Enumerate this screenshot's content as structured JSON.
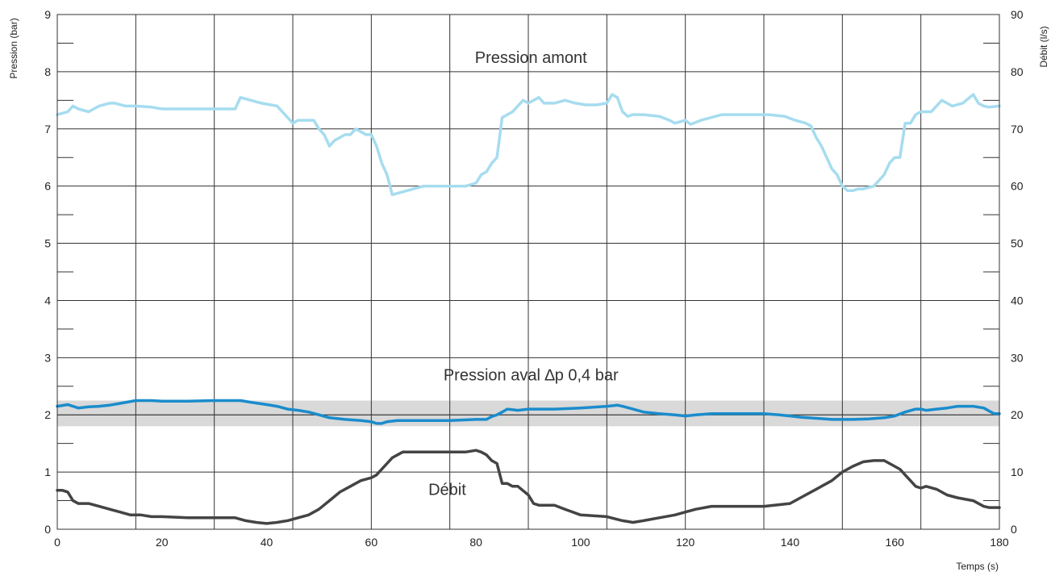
{
  "chart_data": {
    "type": "line",
    "x_axis": {
      "label": "Temps (s)",
      "range": [
        0,
        180
      ],
      "ticks": [
        0,
        20,
        40,
        60,
        80,
        100,
        120,
        140,
        160,
        180
      ],
      "grid_step": 15
    },
    "y_axis_left": {
      "label": "Pression (bar)",
      "range": [
        0,
        9
      ],
      "ticks": [
        0,
        1,
        2,
        3,
        4,
        5,
        6,
        7,
        8,
        9
      ]
    },
    "y_axis_right": {
      "label": "Débit (l/s)",
      "range": [
        0,
        90
      ],
      "ticks": [
        0,
        10,
        20,
        30,
        40,
        50,
        60,
        70,
        80,
        90
      ]
    },
    "grid": true,
    "band": {
      "center": 2.0,
      "lower": 1.8,
      "upper": 2.25,
      "color": "#d9d9d9"
    },
    "annotations": [
      {
        "text": "Pression amont",
        "x": 90.5,
        "y": 8.25
      },
      {
        "text": "Pression aval ∆p 0,4 bar",
        "x": 90.5,
        "y": 2.7
      },
      {
        "text": "Débit",
        "x": 74.5,
        "y": 0.7
      }
    ],
    "series": [
      {
        "axis": "left",
        "color": "#a6dcef",
        "x": [
          0,
          2,
          3,
          4,
          6,
          8,
          10,
          11,
          13,
          15,
          18,
          20,
          25,
          30,
          34,
          35,
          37,
          39,
          42,
          44,
          45,
          46,
          49,
          50,
          51,
          52,
          53,
          55,
          56,
          57,
          58,
          59,
          60,
          61,
          62,
          63,
          64,
          66,
          68,
          70,
          72,
          74,
          76,
          78,
          80,
          81,
          82,
          83,
          84,
          85,
          86,
          87,
          88,
          89,
          90,
          91,
          92,
          93,
          95,
          97,
          99,
          101,
          103,
          105,
          106,
          107,
          108,
          109,
          110,
          112,
          115,
          117,
          118,
          120,
          121,
          123,
          125,
          127,
          130,
          133,
          136,
          139,
          141,
          143,
          144,
          145,
          146,
          147,
          148,
          149,
          150,
          151,
          152,
          153,
          154,
          156,
          158,
          159,
          160,
          161,
          162,
          163,
          164,
          165,
          166,
          167,
          169,
          170,
          171,
          173,
          175,
          176,
          177,
          178,
          180
        ],
        "y": [
          7.25,
          7.3,
          7.4,
          7.35,
          7.3,
          7.4,
          7.45,
          7.45,
          7.4,
          7.4,
          7.38,
          7.35,
          7.35,
          7.35,
          7.35,
          7.55,
          7.5,
          7.45,
          7.4,
          7.2,
          7.1,
          7.15,
          7.15,
          7.0,
          6.9,
          6.7,
          6.8,
          6.9,
          6.9,
          7.0,
          6.95,
          6.9,
          6.9,
          6.7,
          6.4,
          6.2,
          5.85,
          5.9,
          5.95,
          6.0,
          6.0,
          6.0,
          6.0,
          6.0,
          6.05,
          6.2,
          6.25,
          6.4,
          6.5,
          7.2,
          7.25,
          7.3,
          7.4,
          7.5,
          7.45,
          7.5,
          7.55,
          7.45,
          7.45,
          7.5,
          7.45,
          7.42,
          7.42,
          7.45,
          7.6,
          7.55,
          7.3,
          7.22,
          7.25,
          7.25,
          7.22,
          7.15,
          7.1,
          7.15,
          7.08,
          7.15,
          7.2,
          7.25,
          7.25,
          7.25,
          7.25,
          7.22,
          7.15,
          7.1,
          7.05,
          6.85,
          6.7,
          6.5,
          6.3,
          6.2,
          6.0,
          5.92,
          5.92,
          5.95,
          5.95,
          6.0,
          6.2,
          6.4,
          6.5,
          6.5,
          7.1,
          7.1,
          7.25,
          7.3,
          7.3,
          7.3,
          7.5,
          7.45,
          7.4,
          7.45,
          7.6,
          7.45,
          7.4,
          7.38,
          7.4
        ]
      },
      {
        "axis": "left",
        "color": "#1a8ccc",
        "x": [
          0,
          2,
          4,
          6,
          8,
          10,
          12,
          15,
          18,
          20,
          25,
          30,
          35,
          37,
          40,
          42,
          44,
          46,
          48,
          50,
          52,
          55,
          58,
          60,
          61,
          62,
          63,
          65,
          70,
          75,
          80,
          82,
          83,
          84,
          85,
          86,
          88,
          90,
          92,
          95,
          100,
          105,
          107,
          108,
          110,
          112,
          115,
          118,
          120,
          122,
          125,
          130,
          135,
          138,
          140,
          142,
          145,
          148,
          150,
          152,
          155,
          158,
          160,
          162,
          164,
          165,
          166,
          168,
          170,
          172,
          175,
          177,
          178,
          179,
          180
        ],
        "y": [
          2.15,
          2.18,
          2.12,
          2.14,
          2.15,
          2.17,
          2.2,
          2.25,
          2.25,
          2.24,
          2.24,
          2.25,
          2.25,
          2.22,
          2.18,
          2.15,
          2.1,
          2.08,
          2.05,
          2.0,
          1.95,
          1.92,
          1.9,
          1.88,
          1.85,
          1.85,
          1.88,
          1.9,
          1.9,
          1.9,
          1.92,
          1.92,
          1.97,
          2.0,
          2.05,
          2.1,
          2.08,
          2.1,
          2.1,
          2.1,
          2.12,
          2.15,
          2.17,
          2.15,
          2.1,
          2.05,
          2.02,
          2.0,
          1.98,
          2.0,
          2.02,
          2.02,
          2.02,
          2.0,
          1.98,
          1.96,
          1.94,
          1.92,
          1.92,
          1.92,
          1.93,
          1.95,
          1.98,
          2.05,
          2.1,
          2.1,
          2.08,
          2.1,
          2.12,
          2.15,
          2.15,
          2.12,
          2.07,
          2.02,
          2.02
        ]
      },
      {
        "axis": "left",
        "color": "#444444",
        "x": [
          0,
          1,
          2,
          3,
          4,
          6,
          8,
          10,
          12,
          14,
          16,
          18,
          20,
          25,
          30,
          34,
          36,
          38,
          40,
          42,
          44,
          46,
          48,
          50,
          52,
          54,
          56,
          58,
          60,
          61,
          62,
          63,
          64,
          65,
          66,
          67,
          68,
          70,
          72,
          75,
          78,
          80,
          81,
          82,
          83,
          84,
          85,
          86,
          87,
          88,
          90,
          91,
          92,
          95,
          97,
          100,
          105,
          108,
          110,
          112,
          115,
          118,
          120,
          122,
          125,
          130,
          135,
          140,
          142,
          145,
          148,
          150,
          152,
          154,
          156,
          158,
          160,
          161,
          162,
          163,
          164,
          165,
          166,
          168,
          170,
          172,
          175,
          177,
          178,
          180
        ],
        "y": [
          0.68,
          0.68,
          0.65,
          0.5,
          0.45,
          0.45,
          0.4,
          0.35,
          0.3,
          0.25,
          0.25,
          0.22,
          0.22,
          0.2,
          0.2,
          0.2,
          0.15,
          0.12,
          0.1,
          0.12,
          0.15,
          0.2,
          0.25,
          0.35,
          0.5,
          0.65,
          0.75,
          0.85,
          0.9,
          0.95,
          1.05,
          1.15,
          1.25,
          1.3,
          1.35,
          1.35,
          1.35,
          1.35,
          1.35,
          1.35,
          1.35,
          1.38,
          1.35,
          1.3,
          1.2,
          1.15,
          0.8,
          0.8,
          0.75,
          0.75,
          0.6,
          0.45,
          0.42,
          0.42,
          0.35,
          0.25,
          0.22,
          0.15,
          0.12,
          0.15,
          0.2,
          0.25,
          0.3,
          0.35,
          0.4,
          0.4,
          0.4,
          0.45,
          0.55,
          0.7,
          0.85,
          1.0,
          1.1,
          1.18,
          1.2,
          1.2,
          1.1,
          1.05,
          0.95,
          0.85,
          0.75,
          0.72,
          0.75,
          0.7,
          0.6,
          0.55,
          0.5,
          0.4,
          0.38,
          0.38
        ]
      }
    ]
  }
}
